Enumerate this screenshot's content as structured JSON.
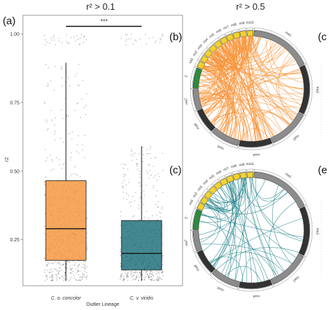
{
  "panels": {
    "a": "(a)",
    "b": "(b)",
    "c": "(c)",
    "d_partial": "(c",
    "e_partial": "(e"
  },
  "titles": {
    "a_title": "r² > 0.1",
    "b_title": "r² > 0.5"
  },
  "colors": {
    "concolor": "#f7943a",
    "viridis": "#1b6f7a",
    "orange_links": "#f7943a",
    "teal_links": "#1b7f86",
    "green_chrom": "#2e8b3e",
    "yellow_chrom": "#f2d22e",
    "gray_chrom": "#8c8c8c",
    "dark_chrom": "#333333"
  },
  "chart_data": [
    {
      "type": "box",
      "title": "r² > 0.1",
      "xlabel": "Outlier Lineage",
      "ylabel": "r2",
      "ylim": [
        0.1,
        1.0
      ],
      "yticks": [
        "0.25",
        "0.50",
        "0.75",
        "1.00"
      ],
      "yticks_values": [
        0.25,
        0.5,
        0.75,
        1.0
      ],
      "categories": [
        "C. o. concolor",
        "C. v. viridis"
      ],
      "boxes": [
        {
          "name": "C. o. concolor",
          "q1": 0.175,
          "median": 0.29,
          "q3": 0.465,
          "whisker_low": 0.1,
          "whisker_high": 0.895
        },
        {
          "name": "C. v. viridis",
          "q1": 0.14,
          "median": 0.2,
          "q3": 0.32,
          "whisker_low": 0.1,
          "whisker_high": 0.59
        }
      ],
      "significance": "***",
      "grid": false
    },
    {
      "type": "chord",
      "title": "r² > 0.5",
      "chromosomes": [
        "ma1",
        "ma2",
        "ma3",
        "ma4",
        "ma5",
        "ma6",
        "ma7",
        "mi1",
        "mi2",
        "mi3",
        "mi4",
        "mi5",
        "mi6",
        "mi7",
        "mi8",
        "mi9",
        "mi10",
        "Z"
      ],
      "link_color": "orange"
    },
    {
      "type": "chord",
      "title": "",
      "chromosomes": [
        "ma1",
        "ma2",
        "ma3",
        "ma4",
        "ma5",
        "ma6",
        "ma7",
        "mi1",
        "mi2",
        "mi3",
        "mi4",
        "mi5",
        "mi6",
        "mi7",
        "mi8",
        "mi9",
        "mi10",
        "Z"
      ],
      "link_color": "teal"
    }
  ]
}
